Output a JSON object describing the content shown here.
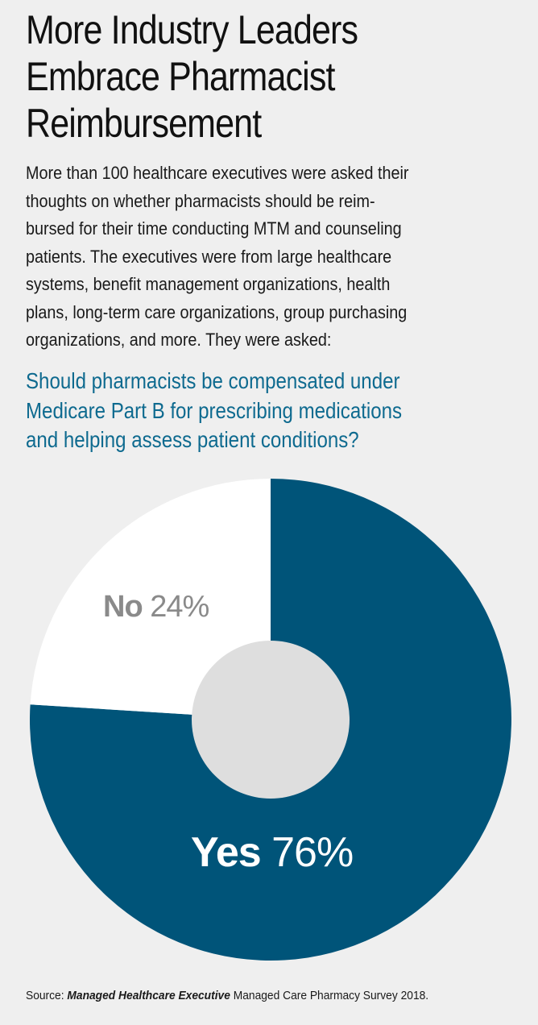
{
  "title_lines": [
    "More Industry Leaders",
    "Embrace Pharmacist",
    "Reimbursement"
  ],
  "intro_lines": [
    "More than 100 healthcare executives were asked their",
    "thoughts on whether pharmacists should be reim-",
    "bursed for their time conducting MTM and counseling",
    "patients. The executives were from large healthcare",
    "systems, benefit management organizations, health",
    "plans, long-term care organizations, group purchasing",
    "organizations, and more. They were asked:"
  ],
  "question_lines": [
    "Should pharmacists be compensated under",
    "Medicare Part B for prescribing medications",
    "and helping assess patient conditions?"
  ],
  "chart_data": {
    "type": "pie",
    "title": "Should pharmacists be compensated under Medicare Part B for prescribing medications and helping assess patient conditions?",
    "slices": [
      {
        "label": "Yes",
        "value": 76,
        "value_label": "76%",
        "color": "#005479"
      },
      {
        "label": "No",
        "value": 24,
        "value_label": "24%",
        "color": "#ffffff"
      }
    ],
    "donut_hole_color": "#dedede"
  },
  "colors": {
    "background": "#efefef",
    "question": "#0e6a8f",
    "yes_label": "#ffffff",
    "no_label": "#8a8a8a"
  },
  "source": {
    "prefix": "Source: ",
    "publication": "Managed Healthcare Executive",
    "suffix": " Managed Care Pharmacy Survey 2018."
  }
}
